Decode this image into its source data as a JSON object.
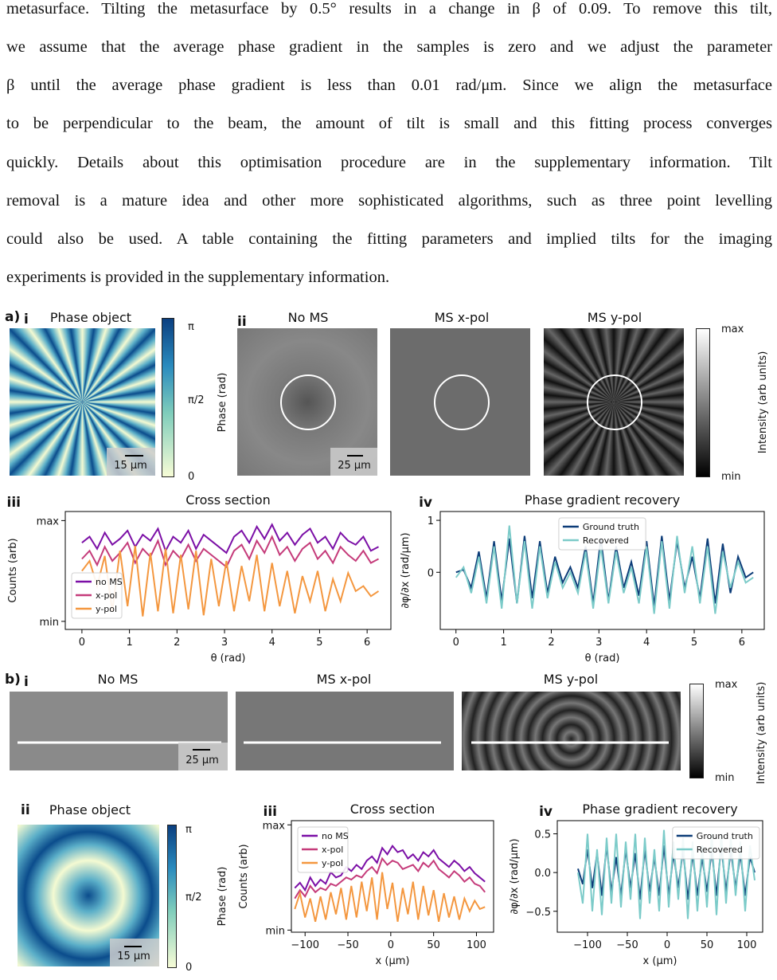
{
  "paragraph": [
    "metasurface. Tilting the metasurface by 0.5° results in a change in β of 0.09. To remove this tilt,",
    "we assume that the average phase gradient in the samples is zero and we adjust the parameter",
    "β until the average phase gradient is less than 0.01 rad/μm. Since we align the metasurface",
    "to be perpendicular to the beam, the amount of tilt is small and this fitting process converges",
    "quickly. Details about this optimisation procedure are in the supplementary information. Tilt",
    "removal is a mature idea and other more sophisticated algorithms, such as three point levelling",
    "could also be used. A table containing the fitting parameters and implied tilts for the imaging",
    "experiments is provided in the supplementary information."
  ],
  "figure": {
    "a": {
      "label": "a)",
      "i": {
        "label": "i",
        "title": "Phase object",
        "scale_bar": "15 μm",
        "colorbar_ticks": [
          "π",
          "π/2",
          "0"
        ],
        "colorbar_label": "Phase (rad)"
      },
      "ii": {
        "label": "ii",
        "titles": [
          "No MS",
          "MS x-pol",
          "MS y-pol"
        ],
        "scale_bar": "25 μm",
        "colorbar_ticks": [
          "max",
          "min"
        ],
        "colorbar_label": "Intensity (arb units)"
      }
    },
    "b": {
      "label": "b)",
      "i": {
        "label": "i",
        "titles": [
          "No MS",
          "MS x-pol",
          "MS y-pol"
        ],
        "scale_bar": "25 μm",
        "colorbar_ticks": [
          "max",
          "min"
        ],
        "colorbar_label": "Intensity (arb units)"
      },
      "ii": {
        "label": "ii",
        "title": "Phase object",
        "scale_bar": "15 μm",
        "colorbar_ticks": [
          "π",
          "π/2",
          "0"
        ],
        "colorbar_label": "Phase (rad)"
      }
    }
  },
  "chart_data": [
    {
      "type": "line",
      "label": "iii",
      "title": "Cross section",
      "xlabel": "θ (rad)",
      "ylabel": "Counts (arb)",
      "legend": "lower left",
      "x": [
        0,
        0.16,
        0.32,
        0.48,
        0.64,
        0.8,
        0.96,
        1.12,
        1.28,
        1.44,
        1.6,
        1.76,
        1.92,
        2.08,
        2.24,
        2.4,
        2.56,
        2.72,
        2.88,
        3.04,
        3.2,
        3.36,
        3.52,
        3.68,
        3.84,
        4,
        4.16,
        4.32,
        4.48,
        4.64,
        4.8,
        4.96,
        5.12,
        5.28,
        5.44,
        5.6,
        5.76,
        5.92,
        6.08,
        6.24
      ],
      "series": [
        {
          "name": "no MS",
          "color": "#7b0fa6",
          "values": [
            0.78,
            0.84,
            0.72,
            0.88,
            0.76,
            0.82,
            0.9,
            0.74,
            0.86,
            0.8,
            0.92,
            0.7,
            0.84,
            0.78,
            0.9,
            0.72,
            0.86,
            0.8,
            0.74,
            0.68,
            0.84,
            0.9,
            0.78,
            0.94,
            0.82,
            0.96,
            0.8,
            0.88,
            0.76,
            0.86,
            0.92,
            0.78,
            0.84,
            0.72,
            0.88,
            0.8,
            0.76,
            0.84,
            0.7,
            0.74
          ]
        },
        {
          "name": "x-pol",
          "color": "#c53b7a",
          "values": [
            0.62,
            0.7,
            0.56,
            0.74,
            0.6,
            0.68,
            0.78,
            0.58,
            0.72,
            0.64,
            0.8,
            0.56,
            0.7,
            0.62,
            0.76,
            0.6,
            0.72,
            0.66,
            0.6,
            0.54,
            0.7,
            0.76,
            0.62,
            0.8,
            0.68,
            0.84,
            0.66,
            0.74,
            0.6,
            0.72,
            0.78,
            0.62,
            0.7,
            0.58,
            0.74,
            0.66,
            0.6,
            0.7,
            0.58,
            0.62
          ]
        },
        {
          "name": "y-pol",
          "color": "#f4973f",
          "values": [
            0.5,
            0.6,
            0.35,
            0.65,
            0.1,
            0.7,
            0.15,
            0.75,
            0.05,
            0.68,
            0.1,
            0.72,
            0.08,
            0.66,
            0.12,
            0.7,
            0.06,
            0.62,
            0.15,
            0.6,
            0.1,
            0.55,
            0.2,
            0.66,
            0.1,
            0.58,
            0.15,
            0.5,
            0.08,
            0.45,
            0.2,
            0.5,
            0.1,
            0.42,
            0.2,
            0.48,
            0.3,
            0.35,
            0.25,
            0.3
          ]
        }
      ],
      "xlim": [
        -0.35,
        6.5
      ],
      "ylim": [
        -0.08,
        1.09
      ],
      "xticks": [
        0,
        1,
        2,
        3,
        4,
        5,
        6
      ],
      "yticks": [
        {
          "value": 0,
          "label": "min"
        },
        {
          "value": 1,
          "label": "max"
        }
      ]
    },
    {
      "type": "line",
      "label": "iv",
      "title": "Phase gradient recovery",
      "xlabel": "θ (rad)",
      "ylabel": "∂φ/∂x (rad/μm)",
      "legend": "upper center",
      "x": [
        0,
        0.16,
        0.32,
        0.48,
        0.64,
        0.8,
        0.96,
        1.12,
        1.28,
        1.44,
        1.6,
        1.76,
        1.92,
        2.08,
        2.24,
        2.4,
        2.56,
        2.72,
        2.88,
        3.04,
        3.2,
        3.36,
        3.52,
        3.68,
        3.84,
        4,
        4.16,
        4.32,
        4.48,
        4.64,
        4.8,
        4.96,
        5.12,
        5.28,
        5.44,
        5.6,
        5.76,
        5.92,
        6.08,
        6.24
      ],
      "series": [
        {
          "name": "Ground truth",
          "color": "#0c3c78",
          "values": [
            0,
            0.05,
            -0.3,
            0.4,
            -0.5,
            0.6,
            -0.55,
            0.65,
            -0.6,
            0.7,
            -0.5,
            0.6,
            -0.4,
            0.3,
            -0.2,
            0.1,
            -0.3,
            0.5,
            -0.6,
            0.65,
            -0.55,
            0.5,
            -0.3,
            0.2,
            -0.45,
            0.6,
            -0.65,
            0.7,
            -0.55,
            0.6,
            -0.3,
            0.3,
            -0.5,
            0.65,
            -0.6,
            0.55,
            -0.4,
            0.3,
            -0.1,
            0
          ]
        },
        {
          "name": "Recovered",
          "color": "#7ccbc9",
          "values": [
            -0.1,
            0.1,
            -0.4,
            0.3,
            -0.6,
            0.5,
            -0.7,
            0.9,
            -0.6,
            0.6,
            -0.7,
            0.5,
            -0.5,
            0.2,
            -0.3,
            0,
            -0.4,
            0.4,
            -0.7,
            0.5,
            -0.6,
            0.4,
            -0.4,
            0.1,
            -0.6,
            0.5,
            -0.8,
            0.6,
            -0.7,
            0.7,
            -0.4,
            0.5,
            -0.6,
            0.5,
            -0.8,
            0.4,
            -0.3,
            0.2,
            -0.2,
            -0.1
          ]
        }
      ],
      "xlim": [
        -0.33,
        6.47
      ],
      "ylim": [
        -1.1,
        1.17
      ],
      "xticks": [
        0,
        1,
        2,
        3,
        4,
        5,
        6
      ],
      "yticks": [
        0,
        1
      ]
    },
    {
      "type": "line",
      "label": "iii",
      "title": "Cross section",
      "xlabel": "x (μm)",
      "ylabel": "Counts (arb)",
      "legend": "upper left",
      "x": [
        -112,
        -106,
        -100,
        -94,
        -88,
        -82,
        -76,
        -70,
        -64,
        -58,
        -52,
        -46,
        -40,
        -34,
        -28,
        -22,
        -16,
        -10,
        -4,
        2,
        8,
        14,
        20,
        26,
        32,
        38,
        44,
        50,
        56,
        62,
        68,
        74,
        80,
        86,
        92,
        98,
        104,
        110
      ],
      "series": [
        {
          "name": "no MS",
          "color": "#7b0fa6",
          "values": [
            0.4,
            0.45,
            0.38,
            0.5,
            0.42,
            0.48,
            0.44,
            0.55,
            0.5,
            0.52,
            0.6,
            0.56,
            0.62,
            0.58,
            0.66,
            0.7,
            0.64,
            0.78,
            0.72,
            0.8,
            0.74,
            0.76,
            0.68,
            0.72,
            0.66,
            0.74,
            0.7,
            0.76,
            0.68,
            0.64,
            0.6,
            0.66,
            0.62,
            0.56,
            0.6,
            0.54,
            0.5,
            0.46
          ]
        },
        {
          "name": "x-pol",
          "color": "#c53b7a",
          "values": [
            0.3,
            0.38,
            0.32,
            0.42,
            0.36,
            0.4,
            0.38,
            0.44,
            0.42,
            0.46,
            0.5,
            0.48,
            0.52,
            0.5,
            0.56,
            0.6,
            0.54,
            0.68,
            0.62,
            0.66,
            0.64,
            0.58,
            0.6,
            0.62,
            0.56,
            0.64,
            0.6,
            0.66,
            0.58,
            0.54,
            0.5,
            0.56,
            0.52,
            0.46,
            0.5,
            0.44,
            0.42,
            0.36
          ]
        },
        {
          "name": "y-pol",
          "color": "#f4973f",
          "values": [
            0.2,
            0.35,
            0.12,
            0.3,
            0.08,
            0.32,
            0.1,
            0.36,
            0.15,
            0.4,
            0.1,
            0.42,
            0.12,
            0.46,
            0.18,
            0.5,
            0.1,
            0.55,
            0.2,
            0.45,
            0.08,
            0.4,
            0.15,
            0.46,
            0.1,
            0.42,
            0.14,
            0.38,
            0.08,
            0.35,
            0.12,
            0.32,
            0.1,
            0.3,
            0.18,
            0.28,
            0.2,
            0.22
          ]
        }
      ],
      "xlim": [
        -116,
        120
      ],
      "ylim": [
        -0.02,
        1.04
      ],
      "xticks": [
        {
          "value": -100,
          "label": "−100"
        },
        {
          "value": -50,
          "label": "−50"
        },
        0,
        50,
        100
      ],
      "yticks": [
        {
          "value": 0,
          "label": "min"
        },
        {
          "value": 1,
          "label": "max"
        }
      ]
    },
    {
      "type": "line",
      "label": "iv",
      "title": "Phase gradient recovery",
      "xlabel": "x (μm)",
      "ylabel": "∂φ/∂x (rad/μm)",
      "legend": "upper right",
      "x": [
        -112,
        -106,
        -100,
        -94,
        -88,
        -82,
        -76,
        -70,
        -64,
        -58,
        -52,
        -46,
        -40,
        -34,
        -28,
        -22,
        -16,
        -10,
        -4,
        2,
        8,
        14,
        20,
        26,
        32,
        38,
        44,
        50,
        56,
        62,
        68,
        74,
        80,
        86,
        92,
        98,
        104,
        110
      ],
      "series": [
        {
          "name": "Ground truth",
          "color": "#0c3c78",
          "values": [
            0.05,
            -0.15,
            0.3,
            -0.2,
            0.25,
            -0.3,
            0.35,
            -0.25,
            0.2,
            -0.3,
            0.3,
            -0.2,
            0.25,
            -0.35,
            0.3,
            -0.25,
            0.2,
            -0.3,
            0.35,
            -0.3,
            0.25,
            -0.2,
            0.3,
            -0.35,
            0.25,
            -0.3,
            0.2,
            -0.25,
            0.3,
            -0.3,
            0.35,
            -0.25,
            0.3,
            -0.2,
            0.25,
            -0.3,
            0.2,
            0
          ]
        },
        {
          "name": "Recovered",
          "color": "#7ccbc9",
          "values": [
            0,
            -0.4,
            0.5,
            -0.5,
            0.3,
            -0.55,
            0.45,
            -0.4,
            0.5,
            -0.45,
            0.4,
            -0.35,
            0.5,
            -0.6,
            0.45,
            -0.4,
            0.3,
            -0.5,
            0.55,
            -0.45,
            0.4,
            -0.35,
            0.45,
            -0.6,
            0.4,
            -0.5,
            0.35,
            -0.45,
            0.5,
            -0.55,
            0.5,
            -0.4,
            0.45,
            -0.3,
            0.4,
            -0.5,
            0.35,
            -0.1
          ]
        }
      ],
      "xlim": [
        -138,
        120
      ],
      "ylim": [
        -0.77,
        0.67
      ],
      "xticks": [
        {
          "value": -100,
          "label": "−100"
        },
        {
          "value": -50,
          "label": "−50"
        },
        0,
        50,
        100
      ],
      "yticks": [
        {
          "value": -0.5,
          "label": "−0.5"
        },
        {
          "value": 0,
          "label": "0.0"
        },
        0.5
      ]
    }
  ]
}
